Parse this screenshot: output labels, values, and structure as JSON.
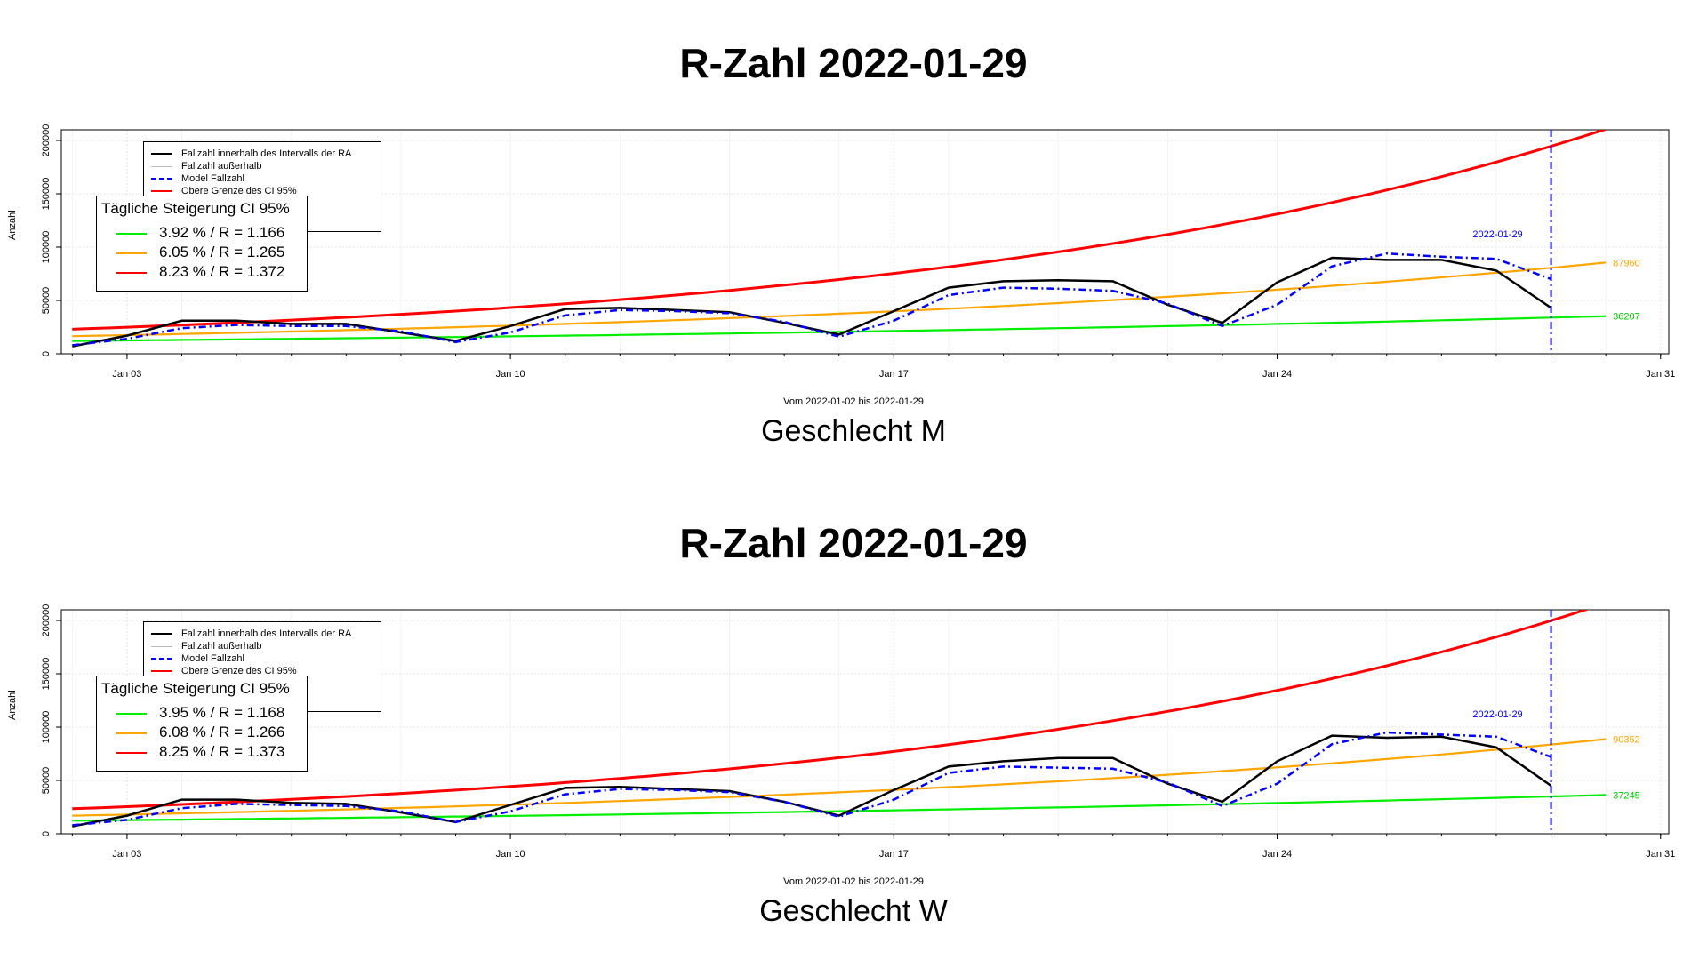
{
  "charts": [
    {
      "title": "R-Zahl 2022-01-29",
      "subtitle": "Vom 2022-01-02 bis 2022-01-29",
      "gender": "Geschlecht M",
      "ylabel": "Anzahl",
      "legend": {
        "items": [
          {
            "label": "Fallzahl innerhalb des Intervalls der RA",
            "color": "#000000",
            "style": "solid"
          },
          {
            "label": "Fallzahl außerhalb",
            "color": "#bbbbbb",
            "style": "solid"
          },
          {
            "label": "Model Fallzahl",
            "color": "#0000ff",
            "style": "dashdot"
          },
          {
            "label": "Obere Grenze des CI 95%",
            "color": "#ff0000",
            "style": "solid"
          }
        ]
      },
      "ci_legend": {
        "title": "Tägliche Steigerung CI  95%",
        "items": [
          {
            "text": "3.92 % / R = 1.166",
            "color": "#00ee00"
          },
          {
            "text": "6.05 % / R = 1.265",
            "color": "#ffa500"
          },
          {
            "text": "8.23 % / R = 1.372",
            "color": "#ff0000"
          }
        ]
      },
      "end_label_orange": "87960",
      "end_label_green": "36207",
      "date_marker_label": "2022-01-29"
    },
    {
      "title": "R-Zahl 2022-01-29",
      "subtitle": "Vom 2022-01-02 bis 2022-01-29",
      "gender": "Geschlecht W",
      "ylabel": "Anzahl",
      "legend": {
        "items": [
          {
            "label": "Fallzahl innerhalb des Intervalls der RA",
            "color": "#000000",
            "style": "solid"
          },
          {
            "label": "Fallzahl außerhalb",
            "color": "#bbbbbb",
            "style": "solid"
          },
          {
            "label": "Model Fallzahl",
            "color": "#0000ff",
            "style": "dashdot"
          },
          {
            "label": "Obere Grenze des CI 95%",
            "color": "#ff0000",
            "style": "solid"
          }
        ]
      },
      "ci_legend": {
        "title": "Tägliche Steigerung CI  95%",
        "items": [
          {
            "text": "3.95 % / R = 1.168",
            "color": "#00ee00"
          },
          {
            "text": "6.08 % / R = 1.266",
            "color": "#ffa500"
          },
          {
            "text": "8.25 % / R = 1.373",
            "color": "#ff0000"
          }
        ]
      },
      "end_label_orange": "90352",
      "end_label_green": "37245",
      "date_marker_label": "2022-01-29"
    }
  ],
  "chart_data": [
    {
      "type": "line",
      "title": "R-Zahl 2022-01-29",
      "xlabel": "Vom 2022-01-02 bis 2022-01-29",
      "ylabel": "Anzahl",
      "x_ticks": [
        "Jan 03",
        "Jan 10",
        "Jan 17",
        "Jan 24",
        "Jan 31"
      ],
      "y_ticks": [
        0,
        50000,
        100000,
        150000,
        200000
      ],
      "ylim": [
        0,
        210000
      ],
      "xlim": [
        "2022-01-02",
        "2022-01-31"
      ],
      "grid": true,
      "vline_date": "2022-01-29",
      "series": [
        {
          "name": "Fallzahl innerhalb des Intervalls der RA",
          "color": "#000000",
          "x": [
            "2022-01-02",
            "2022-01-03",
            "2022-01-04",
            "2022-01-05",
            "2022-01-06",
            "2022-01-07",
            "2022-01-08",
            "2022-01-09",
            "2022-01-10",
            "2022-01-11",
            "2022-01-12",
            "2022-01-13",
            "2022-01-14",
            "2022-01-15",
            "2022-01-16",
            "2022-01-17",
            "2022-01-18",
            "2022-01-19",
            "2022-01-20",
            "2022-01-21",
            "2022-01-22",
            "2022-01-23",
            "2022-01-24",
            "2022-01-25",
            "2022-01-26",
            "2022-01-27",
            "2022-01-28",
            "2022-01-29"
          ],
          "values": [
            7000,
            17000,
            31000,
            31000,
            28000,
            28000,
            20000,
            12000,
            26000,
            42000,
            43000,
            41000,
            39000,
            29000,
            18000,
            40000,
            62000,
            68000,
            69000,
            68000,
            46000,
            29000,
            67000,
            90000,
            88000,
            88000,
            78000,
            43000
          ]
        },
        {
          "name": "Model Fallzahl",
          "color": "#0000ff",
          "dash": "8,4,2,4",
          "x": [
            "2022-01-02",
            "2022-01-03",
            "2022-01-04",
            "2022-01-05",
            "2022-01-06",
            "2022-01-07",
            "2022-01-08",
            "2022-01-09",
            "2022-01-10",
            "2022-01-11",
            "2022-01-12",
            "2022-01-13",
            "2022-01-14",
            "2022-01-15",
            "2022-01-16",
            "2022-01-17",
            "2022-01-18",
            "2022-01-19",
            "2022-01-20",
            "2022-01-21",
            "2022-01-22",
            "2022-01-23",
            "2022-01-24",
            "2022-01-25",
            "2022-01-26",
            "2022-01-27",
            "2022-01-28",
            "2022-01-29"
          ],
          "values": [
            8000,
            14000,
            24000,
            27000,
            26000,
            26000,
            21000,
            11000,
            20000,
            36000,
            41000,
            40000,
            38000,
            30000,
            16000,
            31000,
            55000,
            62000,
            61000,
            59000,
            47000,
            26000,
            46000,
            82000,
            94000,
            91000,
            89000,
            70000
          ]
        },
        {
          "name": "Obere Grenze des CI 95%",
          "color": "#ff0000",
          "start_date": "2022-01-02",
          "start_value": 23000,
          "daily_rate": 0.0823,
          "end_date": "2022-01-30"
        },
        {
          "name": "",
          "color": "#ffa500",
          "start_date": "2022-01-02",
          "start_value": 16500,
          "daily_rate": 0.0605,
          "end_date": "2022-01-30"
        },
        {
          "name": "",
          "color": "#00ee00",
          "start_date": "2022-01-02",
          "start_value": 12000,
          "daily_rate": 0.0392,
          "end_date": "2022-01-30"
        }
      ]
    },
    {
      "type": "line",
      "title": "R-Zahl 2022-01-29",
      "xlabel": "Vom 2022-01-02 bis 2022-01-29",
      "ylabel": "Anzahl",
      "x_ticks": [
        "Jan 03",
        "Jan 10",
        "Jan 17",
        "Jan 24",
        "Jan 31"
      ],
      "y_ticks": [
        0,
        50000,
        100000,
        150000,
        200000
      ],
      "ylim": [
        0,
        210000
      ],
      "xlim": [
        "2022-01-02",
        "2022-01-31"
      ],
      "grid": true,
      "vline_date": "2022-01-29",
      "series": [
        {
          "name": "Fallzahl innerhalb des Intervalls der RA",
          "color": "#000000",
          "x": [
            "2022-01-02",
            "2022-01-03",
            "2022-01-04",
            "2022-01-05",
            "2022-01-06",
            "2022-01-07",
            "2022-01-08",
            "2022-01-09",
            "2022-01-10",
            "2022-01-11",
            "2022-01-12",
            "2022-01-13",
            "2022-01-14",
            "2022-01-15",
            "2022-01-16",
            "2022-01-17",
            "2022-01-18",
            "2022-01-19",
            "2022-01-20",
            "2022-01-21",
            "2022-01-22",
            "2022-01-23",
            "2022-01-24",
            "2022-01-25",
            "2022-01-26",
            "2022-01-27",
            "2022-01-28",
            "2022-01-29"
          ],
          "values": [
            7000,
            17000,
            32000,
            32000,
            29000,
            28000,
            20000,
            11000,
            27000,
            43000,
            44000,
            42000,
            40000,
            30000,
            17000,
            41000,
            63000,
            68000,
            71000,
            71000,
            47000,
            30000,
            68000,
            92000,
            90000,
            91000,
            81000,
            45000
          ]
        },
        {
          "name": "Model Fallzahl",
          "color": "#0000ff",
          "dash": "8,4,2,4",
          "x": [
            "2022-01-02",
            "2022-01-03",
            "2022-01-04",
            "2022-01-05",
            "2022-01-06",
            "2022-01-07",
            "2022-01-08",
            "2022-01-09",
            "2022-01-10",
            "2022-01-11",
            "2022-01-12",
            "2022-01-13",
            "2022-01-14",
            "2022-01-15",
            "2022-01-16",
            "2022-01-17",
            "2022-01-18",
            "2022-01-19",
            "2022-01-20",
            "2022-01-21",
            "2022-01-22",
            "2022-01-23",
            "2022-01-24",
            "2022-01-25",
            "2022-01-26",
            "2022-01-27",
            "2022-01-28",
            "2022-01-29"
          ],
          "values": [
            8000,
            13000,
            24000,
            28000,
            27000,
            26000,
            21000,
            11000,
            21000,
            37000,
            42000,
            41000,
            39000,
            30000,
            16000,
            32000,
            57000,
            63000,
            62000,
            61000,
            48000,
            26000,
            47000,
            84000,
            95000,
            93000,
            91000,
            72000
          ]
        },
        {
          "name": "Obere Grenze des CI 95%",
          "color": "#ff0000",
          "start_date": "2022-01-02",
          "start_value": 23500,
          "daily_rate": 0.0825,
          "end_date": "2022-01-30"
        },
        {
          "name": "",
          "color": "#ffa500",
          "start_date": "2022-01-02",
          "start_value": 17000,
          "daily_rate": 0.0608,
          "end_date": "2022-01-30"
        },
        {
          "name": "",
          "color": "#00ee00",
          "start_date": "2022-01-02",
          "start_value": 12300,
          "daily_rate": 0.0395,
          "end_date": "2022-01-30"
        }
      ]
    }
  ]
}
